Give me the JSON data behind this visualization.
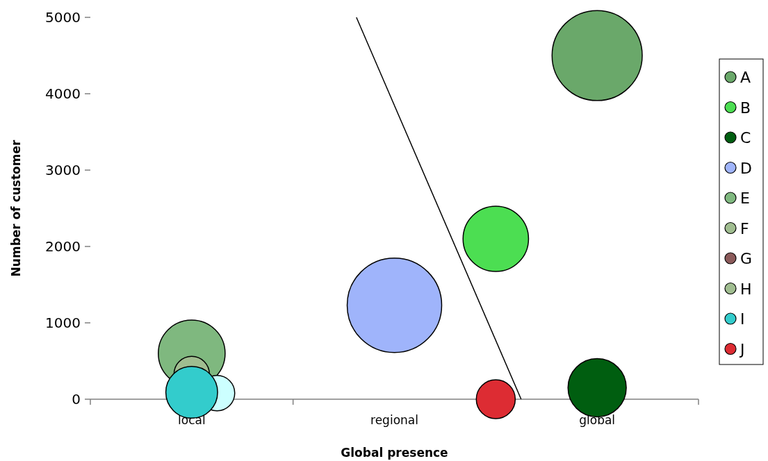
{
  "chart_data": {
    "type": "bubble",
    "xlabel": "Global presence",
    "ylabel": "Number of customer",
    "categories": [
      null,
      null,
      null,
      null,
      null,
      null,
      null,
      null,
      "local",
      null,
      null,
      null,
      null,
      null,
      null,
      null,
      null,
      null,
      null,
      null,
      null,
      null,
      null,
      null,
      "regional",
      null,
      null,
      null,
      null,
      null,
      null,
      null,
      null,
      null,
      null,
      null,
      null,
      null,
      null,
      null,
      "global",
      null,
      null,
      null,
      null,
      null,
      null,
      null,
      null
    ],
    "ylim": [
      0,
      5000
    ],
    "yticks": [
      0,
      1000,
      2000,
      3000,
      4000,
      5000
    ],
    "grid": false,
    "legend": "right",
    "series": [
      {
        "name": "A",
        "color": "#6aa86a",
        "values": [
          null,
          null,
          null,
          null,
          null,
          null,
          null,
          null,
          null,
          null,
          null,
          null,
          null,
          null,
          null,
          null,
          null,
          null,
          null,
          null,
          null,
          null,
          null,
          null,
          null,
          null,
          null,
          null,
          null,
          null,
          null,
          null,
          null,
          null,
          null,
          null,
          null,
          null,
          null,
          null,
          4500,
          null,
          null,
          null,
          null,
          null,
          null,
          null,
          null
        ],
        "sizes": [
          null,
          null,
          null,
          null,
          null,
          null,
          null,
          null,
          null,
          null,
          null,
          null,
          null,
          null,
          null,
          null,
          null,
          null,
          null,
          null,
          null,
          null,
          null,
          null,
          null,
          null,
          null,
          null,
          null,
          null,
          null,
          null,
          null,
          null,
          null,
          null,
          null,
          null,
          null,
          null,
          0.91,
          null,
          null,
          null,
          null,
          null,
          null,
          null,
          null
        ]
      },
      {
        "name": "B",
        "color": "#4cde52",
        "values": [
          null,
          null,
          null,
          null,
          null,
          null,
          null,
          null,
          null,
          null,
          null,
          null,
          null,
          null,
          null,
          null,
          null,
          null,
          null,
          null,
          null,
          null,
          null,
          null,
          null,
          null,
          null,
          null,
          null,
          null,
          null,
          null,
          2100,
          null,
          null,
          null,
          null,
          null,
          null,
          null,
          null,
          null,
          null,
          null,
          null,
          null,
          null,
          null,
          null
        ],
        "sizes": [
          null,
          null,
          null,
          null,
          null,
          null,
          null,
          null,
          null,
          null,
          null,
          null,
          null,
          null,
          null,
          null,
          null,
          null,
          null,
          null,
          null,
          null,
          null,
          null,
          null,
          null,
          null,
          null,
          null,
          null,
          null,
          null,
          0.48,
          null,
          null,
          null,
          null,
          null,
          null,
          null,
          null,
          null,
          null,
          null,
          null,
          null,
          null,
          null,
          null
        ]
      },
      {
        "name": "C",
        "color": "#005e10",
        "values": [
          null,
          null,
          null,
          null,
          null,
          null,
          null,
          null,
          null,
          null,
          null,
          null,
          null,
          null,
          null,
          null,
          null,
          null,
          null,
          null,
          null,
          null,
          null,
          null,
          null,
          null,
          null,
          null,
          null,
          null,
          null,
          null,
          null,
          null,
          null,
          null,
          null,
          null,
          null,
          null,
          150,
          null,
          null,
          null,
          null,
          null,
          null,
          null,
          null
        ],
        "sizes": [
          null,
          null,
          null,
          null,
          null,
          null,
          null,
          null,
          null,
          null,
          null,
          null,
          null,
          null,
          null,
          null,
          null,
          null,
          null,
          null,
          null,
          null,
          null,
          null,
          null,
          null,
          null,
          null,
          null,
          null,
          null,
          null,
          null,
          null,
          null,
          null,
          null,
          null,
          null,
          null,
          0.38,
          null,
          null,
          null,
          null,
          null,
          null,
          null,
          null
        ]
      },
      {
        "name": "D",
        "color": "#9fb4fb",
        "values": [
          null,
          null,
          null,
          null,
          null,
          null,
          null,
          null,
          null,
          null,
          null,
          null,
          null,
          null,
          null,
          null,
          null,
          null,
          null,
          null,
          null,
          null,
          null,
          null,
          1230,
          null,
          null,
          null,
          null,
          null,
          null,
          null,
          null,
          null,
          null,
          null,
          null,
          null,
          null,
          null,
          null,
          null,
          null,
          null,
          null,
          null,
          null,
          null,
          null
        ],
        "sizes": [
          null,
          null,
          null,
          null,
          null,
          null,
          null,
          null,
          null,
          null,
          null,
          null,
          null,
          null,
          null,
          null,
          null,
          null,
          null,
          null,
          null,
          null,
          null,
          null,
          1,
          null,
          null,
          null,
          null,
          null,
          null,
          null,
          null,
          null,
          null,
          null,
          null,
          null,
          null,
          null,
          null,
          null,
          null,
          null,
          null,
          null,
          null,
          null,
          null
        ]
      },
      {
        "name": "E",
        "color": "#7fb87f",
        "values": [
          null,
          null,
          null,
          null,
          null,
          null,
          null,
          null,
          600,
          null,
          null,
          null,
          null,
          null,
          null,
          null,
          null,
          null,
          null,
          null,
          null,
          null,
          null,
          null,
          null,
          null,
          null,
          null,
          null,
          null,
          null,
          null,
          null,
          null,
          null,
          null,
          null,
          null,
          null,
          null,
          null,
          null,
          null,
          null,
          null,
          null,
          null,
          null,
          null
        ],
        "sizes": [
          null,
          null,
          null,
          null,
          null,
          null,
          null,
          null,
          0.5,
          null,
          null,
          null,
          null,
          null,
          null,
          null,
          null,
          null,
          null,
          null,
          null,
          null,
          null,
          null,
          null,
          null,
          null,
          null,
          null,
          null,
          null,
          null,
          null,
          null,
          null,
          null,
          null,
          null,
          null,
          null,
          null,
          null,
          null,
          null,
          null,
          null,
          null,
          null,
          null
        ]
      },
      {
        "name": "F",
        "color": "#a0bd90",
        "values": [
          null,
          null,
          null,
          null,
          null,
          null,
          null,
          null,
          330,
          null,
          null,
          null,
          null,
          null,
          null,
          null,
          null,
          null,
          null,
          null,
          null,
          null,
          null,
          null,
          null,
          null,
          null,
          null,
          null,
          null,
          null,
          null,
          null,
          null,
          null,
          null,
          null,
          null,
          null,
          null,
          null,
          null,
          null,
          null,
          null,
          null,
          null,
          null,
          null
        ],
        "sizes": [
          null,
          null,
          null,
          null,
          null,
          null,
          null,
          null,
          0.14,
          null,
          null,
          null,
          null,
          null,
          null,
          null,
          null,
          null,
          null,
          null,
          null,
          null,
          null,
          null,
          null,
          null,
          null,
          null,
          null,
          null,
          null,
          null,
          null,
          null,
          null,
          null,
          null,
          null,
          null,
          null,
          null,
          null,
          null,
          null,
          null,
          null,
          null,
          null,
          null
        ]
      },
      {
        "name": "G",
        "color": "#8b5a5a",
        "values": [
          null,
          null,
          null,
          null,
          null,
          null,
          null,
          null,
          null,
          null,
          null,
          null,
          null,
          null,
          null,
          null,
          null,
          null,
          null,
          null,
          null,
          null,
          null,
          null,
          null,
          null,
          null,
          null,
          null,
          null,
          null,
          null,
          null,
          null,
          null,
          null,
          null,
          null,
          null,
          null,
          null,
          null,
          null,
          null,
          null,
          null,
          null,
          null,
          null
        ],
        "sizes": [
          null,
          null,
          null,
          null,
          null,
          null,
          null,
          null,
          null,
          null,
          null,
          null,
          null,
          null,
          null,
          null,
          null,
          null,
          null,
          null,
          null,
          null,
          null,
          null,
          null,
          null,
          null,
          null,
          null,
          null,
          null,
          null,
          null,
          null,
          null,
          null,
          null,
          null,
          null,
          null,
          null,
          null,
          null,
          null,
          null,
          null,
          null,
          null,
          null
        ]
      },
      {
        "name": "H",
        "color": "#a0bd90",
        "values": [
          null,
          null,
          null,
          null,
          null,
          null,
          null,
          null,
          null,
          null,
          null,
          null,
          null,
          null,
          null,
          null,
          null,
          null,
          null,
          null,
          null,
          null,
          null,
          null,
          null,
          null,
          null,
          null,
          null,
          null,
          null,
          null,
          null,
          null,
          null,
          null,
          null,
          null,
          null,
          null,
          null,
          null,
          null,
          null,
          null,
          null,
          null,
          null,
          null
        ],
        "sizes": [
          null,
          null,
          null,
          null,
          null,
          null,
          null,
          null,
          null,
          null,
          null,
          null,
          null,
          null,
          null,
          null,
          null,
          null,
          null,
          null,
          null,
          null,
          null,
          null,
          null,
          null,
          null,
          null,
          null,
          null,
          null,
          null,
          null,
          null,
          null,
          null,
          null,
          null,
          null,
          null,
          null,
          null,
          null,
          null,
          null,
          null,
          null,
          null,
          null
        ]
      },
      {
        "color": "#ccffff",
        "values": [
          null,
          null,
          null,
          null,
          null,
          null,
          null,
          null,
          null,
          null,
          80,
          null,
          null,
          null,
          null,
          null,
          null,
          null,
          null,
          null,
          null,
          null,
          null,
          null,
          null,
          null,
          null,
          null,
          null,
          null,
          null,
          null,
          null,
          null,
          null,
          null,
          null,
          null,
          null,
          null,
          null,
          null,
          null,
          null,
          null,
          null,
          null,
          null,
          null
        ],
        "sizes": [
          null,
          null,
          null,
          null,
          null,
          null,
          null,
          null,
          null,
          null,
          0.14,
          null,
          null,
          null,
          null,
          null,
          null,
          null,
          null,
          null,
          null,
          null,
          null,
          null,
          null,
          null,
          null,
          null,
          null,
          null,
          null,
          null,
          null,
          null,
          null,
          null,
          null,
          null,
          null,
          null,
          null,
          null,
          null,
          null,
          null,
          null,
          null,
          null,
          null
        ]
      },
      {
        "name": "I",
        "color": "#33cccc",
        "values": [
          null,
          null,
          null,
          null,
          null,
          null,
          null,
          null,
          90,
          null,
          null,
          null,
          null,
          null,
          null,
          null,
          null,
          null,
          null,
          null,
          null,
          null,
          null,
          null,
          null,
          null,
          null,
          null,
          null,
          null,
          null,
          null,
          null,
          null,
          null,
          null,
          null,
          null,
          null,
          null,
          null,
          null,
          null,
          null,
          null,
          null,
          null,
          null,
          null
        ],
        "sizes": [
          null,
          null,
          null,
          null,
          null,
          null,
          null,
          null,
          0.3,
          null,
          null,
          null,
          null,
          null,
          null,
          null,
          null,
          null,
          null,
          null,
          null,
          null,
          null,
          null,
          null,
          null,
          null,
          null,
          null,
          null,
          null,
          null,
          null,
          null,
          null,
          null,
          null,
          null,
          null,
          null,
          null,
          null,
          null,
          null,
          null,
          null,
          null,
          null,
          null
        ]
      },
      {
        "name": "J",
        "color": "#dd2c33",
        "values": [
          null,
          null,
          null,
          null,
          null,
          null,
          null,
          null,
          null,
          null,
          null,
          null,
          null,
          null,
          null,
          null,
          null,
          null,
          null,
          null,
          null,
          null,
          null,
          null,
          null,
          null,
          null,
          null,
          null,
          null,
          null,
          null,
          0,
          null,
          null,
          null,
          null,
          null,
          null,
          null,
          null,
          null,
          null,
          null,
          null,
          null,
          null,
          null,
          null
        ],
        "sizes": [
          null,
          null,
          null,
          null,
          null,
          null,
          null,
          null,
          null,
          null,
          null,
          null,
          null,
          null,
          null,
          null,
          null,
          null,
          null,
          null,
          null,
          null,
          null,
          null,
          null,
          null,
          null,
          null,
          null,
          null,
          null,
          null,
          0.17,
          null,
          null,
          null,
          null,
          null,
          null,
          null,
          null,
          null,
          null,
          null,
          null,
          null,
          null,
          null,
          null
        ]
      },
      {
        "type": "line",
        "color": "#000000",
        "values": [
          null,
          null,
          null,
          null,
          null,
          null,
          null,
          null,
          null,
          null,
          null,
          null,
          null,
          null,
          null,
          null,
          null,
          null,
          null,
          null,
          null,
          5000,
          null,
          null,
          null,
          null,
          null,
          null,
          null,
          null,
          null,
          null,
          null,
          null,
          0,
          null,
          null,
          null,
          null,
          null,
          null,
          null,
          null,
          null,
          null,
          null,
          null,
          null,
          null
        ],
        "marker": "none",
        "line_style": "solid"
      }
    ]
  }
}
